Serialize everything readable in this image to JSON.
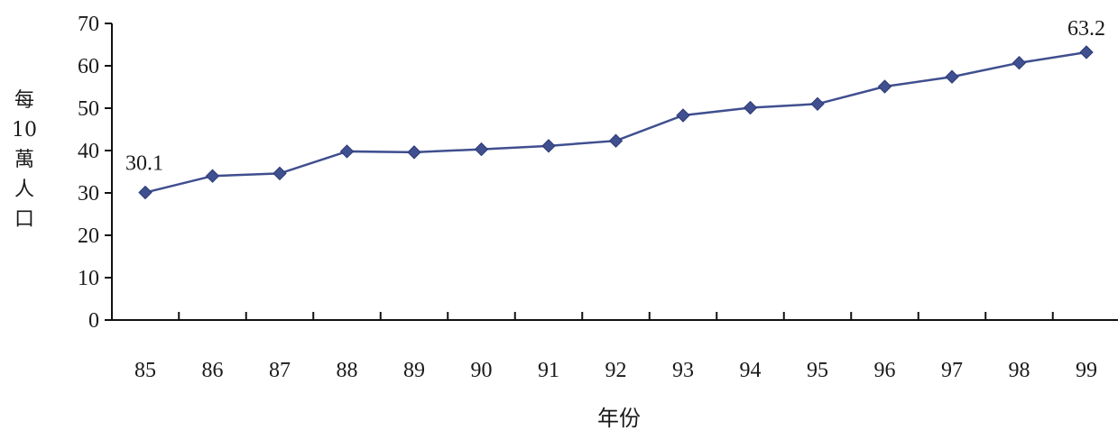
{
  "chart_data": {
    "type": "line",
    "categories": [
      "85",
      "86",
      "87",
      "88",
      "89",
      "90",
      "91",
      "92",
      "93",
      "94",
      "95",
      "96",
      "97",
      "98",
      "99"
    ],
    "series": [
      {
        "values": [
          30.1,
          34.0,
          34.6,
          39.8,
          39.6,
          40.3,
          41.1,
          42.3,
          48.3,
          50.1,
          51.0,
          55.1,
          57.4,
          60.7,
          63.2
        ]
      }
    ],
    "ylabel": "每10萬人口",
    "xlabel": "年份",
    "ylim": [
      0,
      70
    ],
    "yticks": [
      "0",
      "10",
      "20",
      "30",
      "40",
      "50",
      "60",
      "70"
    ],
    "data_labels": [
      {
        "category": "85",
        "text": "30.1"
      },
      {
        "category": "99",
        "text": "63.2"
      }
    ],
    "colors": {
      "line": "#3f4f8f",
      "marker": "#3f4f8f",
      "axis": "#111111"
    },
    "grid": false,
    "legend": "none"
  }
}
